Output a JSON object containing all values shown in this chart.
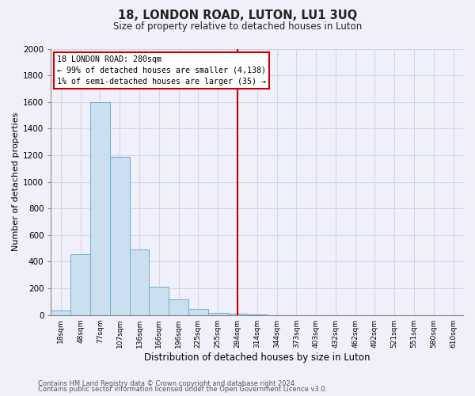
{
  "title": "18, LONDON ROAD, LUTON, LU1 3UQ",
  "subtitle": "Size of property relative to detached houses in Luton",
  "xlabel": "Distribution of detached houses by size in Luton",
  "ylabel": "Number of detached properties",
  "bar_labels": [
    "18sqm",
    "48sqm",
    "77sqm",
    "107sqm",
    "136sqm",
    "166sqm",
    "196sqm",
    "225sqm",
    "255sqm",
    "284sqm",
    "314sqm",
    "344sqm",
    "373sqm",
    "403sqm",
    "432sqm",
    "462sqm",
    "492sqm",
    "521sqm",
    "551sqm",
    "580sqm",
    "610sqm"
  ],
  "bar_values": [
    35,
    455,
    1600,
    1190,
    490,
    210,
    115,
    45,
    15,
    10,
    5,
    0,
    0,
    0,
    0,
    0,
    0,
    0,
    0,
    0,
    0
  ],
  "bar_color": "#ccdff0",
  "bar_edge_color": "#6aaed6",
  "property_line_x": 9.5,
  "property_line_label": "18 LONDON ROAD: 280sqm",
  "annotation_line1": "← 99% of detached houses are smaller (4,138)",
  "annotation_line2": "1% of semi-detached houses are larger (35) →",
  "annotation_box_color": "#ffffff",
  "annotation_box_edge": "#cc0000",
  "vline_color": "#cc0000",
  "ylim": [
    0,
    2000
  ],
  "yticks": [
    0,
    200,
    400,
    600,
    800,
    1000,
    1200,
    1400,
    1600,
    1800,
    2000
  ],
  "grid_color": "#d4d4e8",
  "footer1": "Contains HM Land Registry data © Crown copyright and database right 2024.",
  "footer2": "Contains public sector information licensed under the Open Government Licence v3.0.",
  "bg_color": "#f0f0fa"
}
